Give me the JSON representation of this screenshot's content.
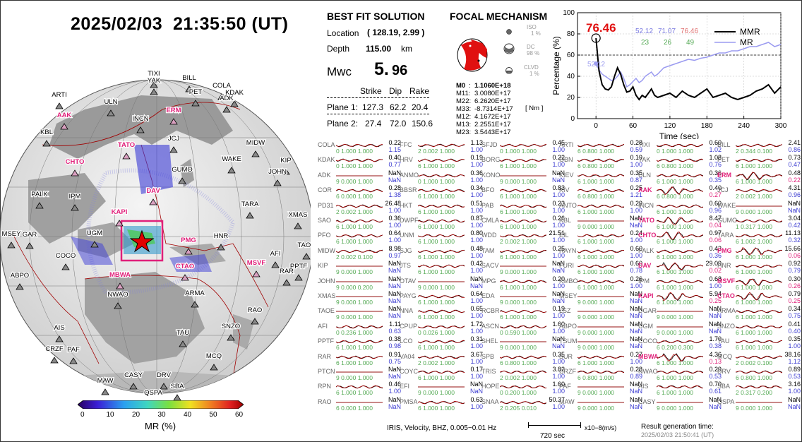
{
  "header": {
    "title": "2025/02/03  21:35:50 (UT)"
  },
  "best_fit": {
    "title": "BEST FIT SOLUTION",
    "location_label": "Location",
    "location_value": "( 128.19,  2.99 )",
    "depth_label": "Depth",
    "depth_value": "115.00",
    "depth_unit": "km",
    "mwc_label": "Mwc",
    "mwc_int": "5.",
    "mwc_frac": "96",
    "col_strike": "Strike",
    "col_dip": "Dip",
    "col_rake": "Rake",
    "plane1_label": "Plane 1:",
    "plane1": [
      "127.3",
      "62.2",
      "20.4"
    ],
    "plane2_label": "Plane 2:",
    "plane2": [
      "27.4",
      "72.0",
      "150.6"
    ]
  },
  "focal": {
    "title": "FOCAL MECHANISM",
    "iso_label": "ISO",
    "iso_val": "1 %",
    "dc_label": "DC",
    "dc_val": "98 %",
    "clvd_label": "CLVD",
    "clvd_val": "1 %",
    "moments": [
      {
        "k": "M0",
        "sep": " :",
        "v": "1.1060E+18"
      },
      {
        "k": "M11:",
        "sep": "",
        "v": "3.0080E+17"
      },
      {
        "k": "M22:",
        "sep": "",
        "v": "6.2620E+17"
      },
      {
        "k": "M33:",
        "sep": "",
        "v": "-8.7314E+17"
      },
      {
        "k": "M12:",
        "sep": "",
        "v": "4.1672E+17"
      },
      {
        "k": "M13:",
        "sep": "",
        "v": "2.2551E+17"
      },
      {
        "k": "M23:",
        "sep": "",
        "v": "3.5443E+17"
      }
    ],
    "unit": "[ Nm ]"
  },
  "colors": {
    "mmr": "#000000",
    "mr": "#9b9bf0",
    "accent_red": "#e0207a",
    "trace_red": "#b00000"
  },
  "chart_data": {
    "type": "line",
    "xlabel": "Time (sec)",
    "ylabel": "Percentage (%)",
    "xlim": [
      -30,
      300
    ],
    "ylim": [
      0,
      100
    ],
    "xticks": [
      "0",
      "60",
      "120",
      "180",
      "240",
      "300"
    ],
    "yticks": [
      "0",
      "20",
      "40",
      "60",
      "80",
      "100"
    ],
    "peak_label": "76.46",
    "mr_start_label": "52.12",
    "top_values": [
      "52.12",
      "71.07",
      "76.46"
    ],
    "top_values2": [
      "23",
      "26",
      "49"
    ],
    "ref_line": 60,
    "series": [
      {
        "name": "MMR",
        "x": [
          0,
          5,
          10,
          15,
          20,
          25,
          30,
          35,
          40,
          45,
          50,
          55,
          60,
          65,
          70,
          75,
          80,
          85,
          90,
          95,
          100,
          110,
          120,
          130,
          140,
          150,
          160,
          170,
          180,
          190,
          200,
          210,
          220,
          230,
          240,
          250,
          260,
          270,
          280,
          290,
          300
        ],
        "values": [
          76,
          45,
          32,
          28,
          27,
          30,
          40,
          48,
          42,
          32,
          25,
          26,
          30,
          22,
          18,
          22,
          20,
          24,
          28,
          22,
          20,
          22,
          24,
          20,
          26,
          22,
          20,
          24,
          28,
          20,
          22,
          24,
          20,
          18,
          20,
          22,
          26,
          28,
          32,
          24,
          30
        ]
      },
      {
        "name": "MR",
        "x": [
          0,
          5,
          10,
          15,
          20,
          25,
          30,
          35,
          40,
          45,
          50,
          55,
          60,
          65,
          70,
          75,
          80,
          85,
          90,
          95,
          100,
          110,
          120,
          130,
          140,
          150,
          160,
          170,
          180,
          190,
          200,
          210,
          220,
          230,
          240,
          250,
          260,
          270,
          280,
          290,
          300
        ],
        "values": [
          52,
          46,
          42,
          40,
          38,
          36,
          37,
          40,
          44,
          38,
          30,
          32,
          35,
          38,
          34,
          36,
          40,
          42,
          44,
          40,
          42,
          48,
          50,
          52,
          54,
          56,
          55,
          57,
          58,
          60,
          62,
          62,
          64,
          64,
          66,
          68,
          68,
          70,
          72,
          68,
          70
        ]
      }
    ]
  },
  "globe": {
    "stations": [
      "TIXI",
      "BILL",
      "YAK",
      "COLA",
      "PET",
      "KDAK",
      "ARTI",
      "ULN",
      "ADK",
      "AAK",
      "ERM",
      "INCN",
      "KBL",
      "JCJ",
      "CHTO",
      "TATO",
      "MIDW",
      "WAKE",
      "KIP",
      "GUMO",
      "JOHN",
      "PALK",
      "IPM",
      "DAV",
      "KAPI",
      "TARA",
      "XMAS",
      "MSEY",
      "GAR",
      "UGM",
      "PMG",
      "HNR",
      "TAOE",
      "COCO",
      "AFI",
      "PPTF",
      "RAR",
      "ABPO",
      "MBWA",
      "CTAO",
      "MSVF",
      "NWAO",
      "ARMA",
      "RAO",
      "AIS",
      "TAU",
      "SNZO",
      "CRZF",
      "PAF",
      "MCQ",
      "CASY",
      "DRV",
      "MAW",
      "SBA",
      "QSPA"
    ],
    "cb_ticks": [
      "0",
      "10",
      "20",
      "30",
      "40",
      "50",
      "60"
    ],
    "cb_label": "MR (%)"
  },
  "waveforms": {
    "columns": [
      [
        {
          "s": "COLA",
          "a": "0.22",
          "b": "1.15",
          "n": "0 1.000 1.000"
        },
        {
          "s": "KDAK",
          "a": "0.40",
          "b": "0.77",
          "n": "0 1.000 1.000"
        },
        {
          "s": "ADK",
          "a": "NaN",
          "b": "NaN",
          "n": "9 0.000 1.000"
        },
        {
          "s": "COR",
          "a": "0.28",
          "b": "1.38",
          "n": "6 0.000 1.000"
        },
        {
          "s": "PD31",
          "a": "26.48",
          "b": "1.00",
          "n": "2 0.002 1.000"
        },
        {
          "s": "SAO",
          "a": "0.36",
          "b": "1.00",
          "n": "6 1.000 1.000"
        },
        {
          "s": "PFO",
          "a": "0.64",
          "b": "1.00",
          "n": "6 1.000 1.000"
        },
        {
          "s": "MIDW",
          "a": "8.98",
          "b": "0.97",
          "n": "2 0.002 0.100"
        },
        {
          "s": "KIP",
          "a": "NaN",
          "b": "NaN",
          "n": "9 0.000 1.000"
        },
        {
          "s": "JOHN",
          "a": "NaN",
          "b": "NaN",
          "n": "9 0.000 0.200"
        },
        {
          "s": "XMAS",
          "a": "NaN",
          "b": "NaN",
          "n": "9 0.000 1.000"
        },
        {
          "s": "TAOE",
          "a": "NaN",
          "b": "NaN",
          "n": "9 0.000 1.000"
        },
        {
          "s": "AFI",
          "a": "1.11",
          "b": "0.63",
          "n": "0 0.236 1.000"
        },
        {
          "s": "PPTF",
          "a": "0.38",
          "b": "0.98",
          "n": "6 1.000 1.000"
        },
        {
          "s": "RAR",
          "a": "0.91",
          "b": "0.75",
          "n": "6 1.000 1.000"
        },
        {
          "s": "PTCN",
          "a": "NaN",
          "b": "NaN",
          "n": "9 0.000 1.000"
        },
        {
          "s": "RPN",
          "a": "0.46",
          "b": "1.00",
          "n": "6 1.000 1.000"
        },
        {
          "s": "RAO",
          "a": "NaN",
          "b": "NaN",
          "n": "6 0.000 1.000"
        }
      ],
      [
        {
          "s": "FFC",
          "a": "1.13",
          "b": "1.00",
          "n": "2 0.002 1.000"
        },
        {
          "s": "HRV",
          "a": "0.19",
          "b": "1.00",
          "n": "6 1.000 1.000"
        },
        {
          "s": "ANMO",
          "a": "0.36",
          "b": "1.00",
          "n": "0 1.000 1.000"
        },
        {
          "s": "BBSR",
          "a": "0.34",
          "b": "1.00",
          "n": "6 1.000 1.000"
        },
        {
          "s": "HKT",
          "a": "0.51",
          "b": "1.00",
          "n": "6 1.000 1.000"
        },
        {
          "s": "DWPF",
          "a": "0.87",
          "b": "1.00",
          "n": "6 1.000 1.000"
        },
        {
          "s": "UNM",
          "a": "0.80",
          "b": "1.00",
          "n": "6 1.000 1.000"
        },
        {
          "s": "SJG",
          "a": "0.48",
          "b": "1.00",
          "n": "6 1.000 1.000"
        },
        {
          "s": "JTS",
          "a": "0.42",
          "b": "1.00",
          "n": "6 1.000 1.000"
        },
        {
          "s": "OTAV",
          "a": "NaN",
          "b": "NaN",
          "n": "9 0.000 1.000"
        },
        {
          "s": "PAYG",
          "a": "0.64",
          "b": "1.00",
          "n": "6 1.000 1.000"
        },
        {
          "s": "NNA",
          "a": "0.65",
          "b": "1.00",
          "n": "6 1.000 1.000"
        },
        {
          "s": "CPUP",
          "a": "1.72",
          "b": "1.00",
          "n": "0 0.026 1.000"
        },
        {
          "s": "LCO",
          "a": "0.31",
          "b": "1.00",
          "n": "6 1.000 1.000"
        },
        {
          "s": "VA04",
          "a": "3.67",
          "b": "1.00",
          "n": "2 0.002 1.000"
        },
        {
          "s": "COYC",
          "a": "0.17",
          "b": "1.00",
          "n": "6 1.000 1.000"
        },
        {
          "s": "EFI",
          "a": "NaN",
          "b": "NaN",
          "n": "9 0.000 1.000"
        },
        {
          "s": "PMSA",
          "a": "0.63",
          "b": "1.00",
          "n": "6 1.000 1.000"
        }
      ],
      [
        {
          "s": "SFJD",
          "a": "0.45",
          "b": "1.00",
          "n": "0 1.000 1.000"
        },
        {
          "s": "BORG",
          "a": "0.22",
          "b": "1.00",
          "n": "6 1.000 1.000"
        },
        {
          "s": "KONO",
          "a": "NaN",
          "b": "NaN",
          "n": "9 0.000 1.000"
        },
        {
          "s": "BFO",
          "a": "0.83",
          "b": "1.00",
          "n": "6 1.000 1.000"
        },
        {
          "s": "PAB",
          "a": "0.23",
          "b": "1.00",
          "n": "6 1.000 1.000"
        },
        {
          "s": "CMLA",
          "a": "0.26",
          "b": "1.00",
          "n": "6 1.000 1.000"
        },
        {
          "s": "WDD",
          "a": "21.51",
          "b": "1.00",
          "n": "2 0.002 1.000"
        },
        {
          "s": "TAM",
          "a": "0.25",
          "b": "1.00",
          "n": "6 1.000 1.000"
        },
        {
          "s": "SACV",
          "a": "NaN",
          "b": "NaN",
          "n": "9 0.000 1.000"
        },
        {
          "s": "MPG",
          "a": "0.20",
          "b": "1.00",
          "n": "6 1.000 1.000"
        },
        {
          "s": "EDA",
          "a": "NaN",
          "b": "NaN",
          "n": "9 0.000 1.000"
        },
        {
          "s": "RCBR",
          "a": "0.19",
          "b": "1.00",
          "n": "6 1.000 1.000"
        },
        {
          "s": "ASCN",
          "a": "1.60",
          "b": "1.00",
          "n": "0 0.590 1.000"
        },
        {
          "s": "SHEL",
          "a": "NaN",
          "b": "NaN",
          "n": "9 0.000 1.000"
        },
        {
          "s": "SPB",
          "a": "0.35",
          "b": "1.00",
          "n": "6 0.800 1.000"
        },
        {
          "s": "TRIS",
          "a": "3.82",
          "b": "1.00",
          "n": "2 0.002 1.000"
        },
        {
          "s": "HOPE",
          "a": "1.60",
          "b": "1.00",
          "n": "0 0.200 1.000"
        },
        {
          "s": "SNAA",
          "a": "50.37",
          "b": "1.00",
          "n": "2 0.205 0.010"
        }
      ],
      [
        {
          "s": "ARTI",
          "a": "0.28",
          "b": "0.59",
          "n": "6 0.800 1.000"
        },
        {
          "s": "OBN",
          "a": "0.19",
          "b": "1.00",
          "n": "6 0.800 1.000"
        },
        {
          "s": "KIEV",
          "a": "0.35",
          "b": "0.87",
          "n": "6 1.000 1.000"
        },
        {
          "s": "KIV",
          "a": "0.25",
          "b": "1.21",
          "n": "6 0.800 1.000"
        },
        {
          "s": "ANTO",
          "a": "0.29",
          "b": "1.00",
          "n": "6 1.000 1.000"
        },
        {
          "s": "KBL",
          "a": "NaN",
          "b": "NaN",
          "n": "9 0.000 1.000"
        },
        {
          "s": "EIL",
          "a": "0.24",
          "b": "1.00",
          "n": "6 1.000 1.000"
        },
        {
          "s": "RAYN",
          "a": "0.60",
          "b": "1.00",
          "n": "6 1.000 1.000"
        },
        {
          "s": "FURI",
          "a": "0.60",
          "b": "0.78",
          "n": "6 1.000 1.000"
        },
        {
          "s": "KMBO",
          "a": "0.26",
          "b": "1.00",
          "n": "6 1.000 1.000"
        },
        {
          "s": "MSEY",
          "a": "NaN",
          "b": "NaN",
          "n": "9 0.000 1.000"
        },
        {
          "s": "LSZ",
          "a": "NaN",
          "b": "NaN",
          "n": "9 0.000 1.000"
        },
        {
          "s": "ABPO",
          "a": "NaN",
          "b": "NaN",
          "n": "9 0.000 1.000"
        },
        {
          "s": "TSUM",
          "a": "NaN",
          "b": "NaN",
          "n": "9 0.000 1.000"
        },
        {
          "s": "SUR",
          "a": "0.27",
          "b": "1.00",
          "n": "6 1.000 1.000"
        },
        {
          "s": "CRZF",
          "a": "0.28",
          "b": "0.89",
          "n": "6 0.800 1.000"
        },
        {
          "s": "PAF",
          "a": "NaN",
          "b": "NaN",
          "n": "9 0.000 1.000"
        },
        {
          "s": "MAW",
          "a": "NaN",
          "b": "NaN",
          "n": "9 0.000 1.000"
        }
      ],
      [
        {
          "s": "TIXI",
          "a": "0.60",
          "b": "1.02",
          "n": "0 1.000 1.000"
        },
        {
          "s": "YAK",
          "a": "1.08",
          "b": "0.76",
          "n": "6 0.800 1.000"
        },
        {
          "s": "ULN",
          "a": "0.36",
          "b": "0.35",
          "n": "6 1.000 1.000"
        },
        {
          "s": "AAK",
          "a": "0.40",
          "b": "0.27",
          "n": "6 0.800 1.000",
          "r": 1
        },
        {
          "s": "INCN",
          "a": "0.60",
          "b": "0.96",
          "n": "6 1.000 1.000"
        },
        {
          "s": "TATO",
          "a": "8.47",
          "b": "0.04",
          "n": "6 1.000 1.000",
          "r": 1
        },
        {
          "s": "CHTO",
          "a": "0.97",
          "b": "0.06",
          "n": "6 1.000 1.000",
          "r": 1
        },
        {
          "s": "PALK",
          "a": "0.43",
          "b": "0.36",
          "n": "6 1.000 1.000"
        },
        {
          "s": "DAV",
          "a": "29.09",
          "b": "0.02",
          "n": "6 1.000 1.000",
          "r": 1
        },
        {
          "s": "IPM",
          "a": "0.68",
          "b": "1.00",
          "n": "6 1.000 1.000"
        },
        {
          "s": "KAPI",
          "a": "5.94",
          "b": "0.25",
          "n": "6 1.000 1.000",
          "r": 1
        },
        {
          "s": "DGAR",
          "a": "NaN",
          "b": "NaN",
          "n": "9 0.000 1.000"
        },
        {
          "s": "UGM",
          "a": "NaN",
          "b": "NaN",
          "n": "9 0.000 1.000"
        },
        {
          "s": "COCO",
          "a": "1.70",
          "b": "0.38",
          "n": "6 0.200 0.300"
        },
        {
          "s": "MBWA",
          "a": "4.36",
          "b": "0.13",
          "n": "6 1.000 1.000",
          "r": 1
        },
        {
          "s": "NWAO",
          "a": "0.29",
          "b": "0.53",
          "n": "6 1.000 1.000"
        },
        {
          "s": "AIS",
          "a": "0.70",
          "b": "0.61",
          "n": "6 1.000 1.000"
        },
        {
          "s": "CASY",
          "a": "NaN",
          "b": "NaN",
          "n": "9 0.000 1.000"
        }
      ],
      [
        {
          "s": "BILL",
          "a": "2.41",
          "b": "0.86",
          "n": "2 0.344 0.100"
        },
        {
          "s": "PET",
          "a": "0.73",
          "b": "0.47",
          "n": "6 1.000 1.000"
        },
        {
          "s": "ERM",
          "a": "0.48",
          "b": "0.22",
          "n": "6 1.000 1.000",
          "r": 1
        },
        {
          "s": "JCJ",
          "a": "4.31",
          "b": "0.96",
          "n": "2 0.002 1.000"
        },
        {
          "s": "WAKE",
          "a": "NaN",
          "b": "NaN",
          "n": "9 0.000 1.000"
        },
        {
          "s": "GUMO",
          "a": "3.04",
          "b": "0.42",
          "n": "1 0.317 1.000"
        },
        {
          "s": "TARA",
          "a": "11.13",
          "b": "0.32",
          "n": "6 1.002 1.000"
        },
        {
          "s": "PMG",
          "a": "15.66",
          "b": "0.06",
          "n": "6 1.000 1.000",
          "r": 1
        },
        {
          "s": "HNR",
          "a": "0.92",
          "b": "0.79",
          "n": "6 1.000 1.000"
        },
        {
          "s": "MSVF",
          "a": "0.30",
          "b": "0.26",
          "n": "6 1.000 1.000",
          "r": 1
        },
        {
          "s": "CTAO",
          "a": "0.79",
          "b": "0.25",
          "n": "6 1.000 1.000",
          "r": 1
        },
        {
          "s": "ARMA",
          "a": "0.34",
          "b": "0.75",
          "n": "6 1.000 1.000"
        },
        {
          "s": "SNZO",
          "a": "0.41",
          "b": "0.40",
          "n": "6 1.000 1.000"
        },
        {
          "s": "TAU",
          "a": "0.35",
          "b": "1.00",
          "n": "6 1.000 1.000"
        },
        {
          "s": "MCQ",
          "a": "38.16",
          "b": "1.12",
          "n": "2 0.002 0.100"
        },
        {
          "s": "DRV",
          "a": "0.89",
          "b": "0.53",
          "n": "6 0.800 1.000"
        },
        {
          "s": "SBA",
          "a": "3.16",
          "b": "1.00",
          "n": "2 0.317 0.200"
        },
        {
          "s": "QSPA",
          "a": "NaN",
          "b": "NaN",
          "n": "9 0.000 1.000"
        }
      ]
    ]
  },
  "footer": {
    "info": "IRIS, Velocity,   BHZ, 0.005−0.01 Hz",
    "scale_label": "720 sec",
    "unit_label": "x10−8(m/s)",
    "gen_label": "Result generation time:",
    "gen_time": "2025/02/03 21:50:41 (UT)"
  }
}
